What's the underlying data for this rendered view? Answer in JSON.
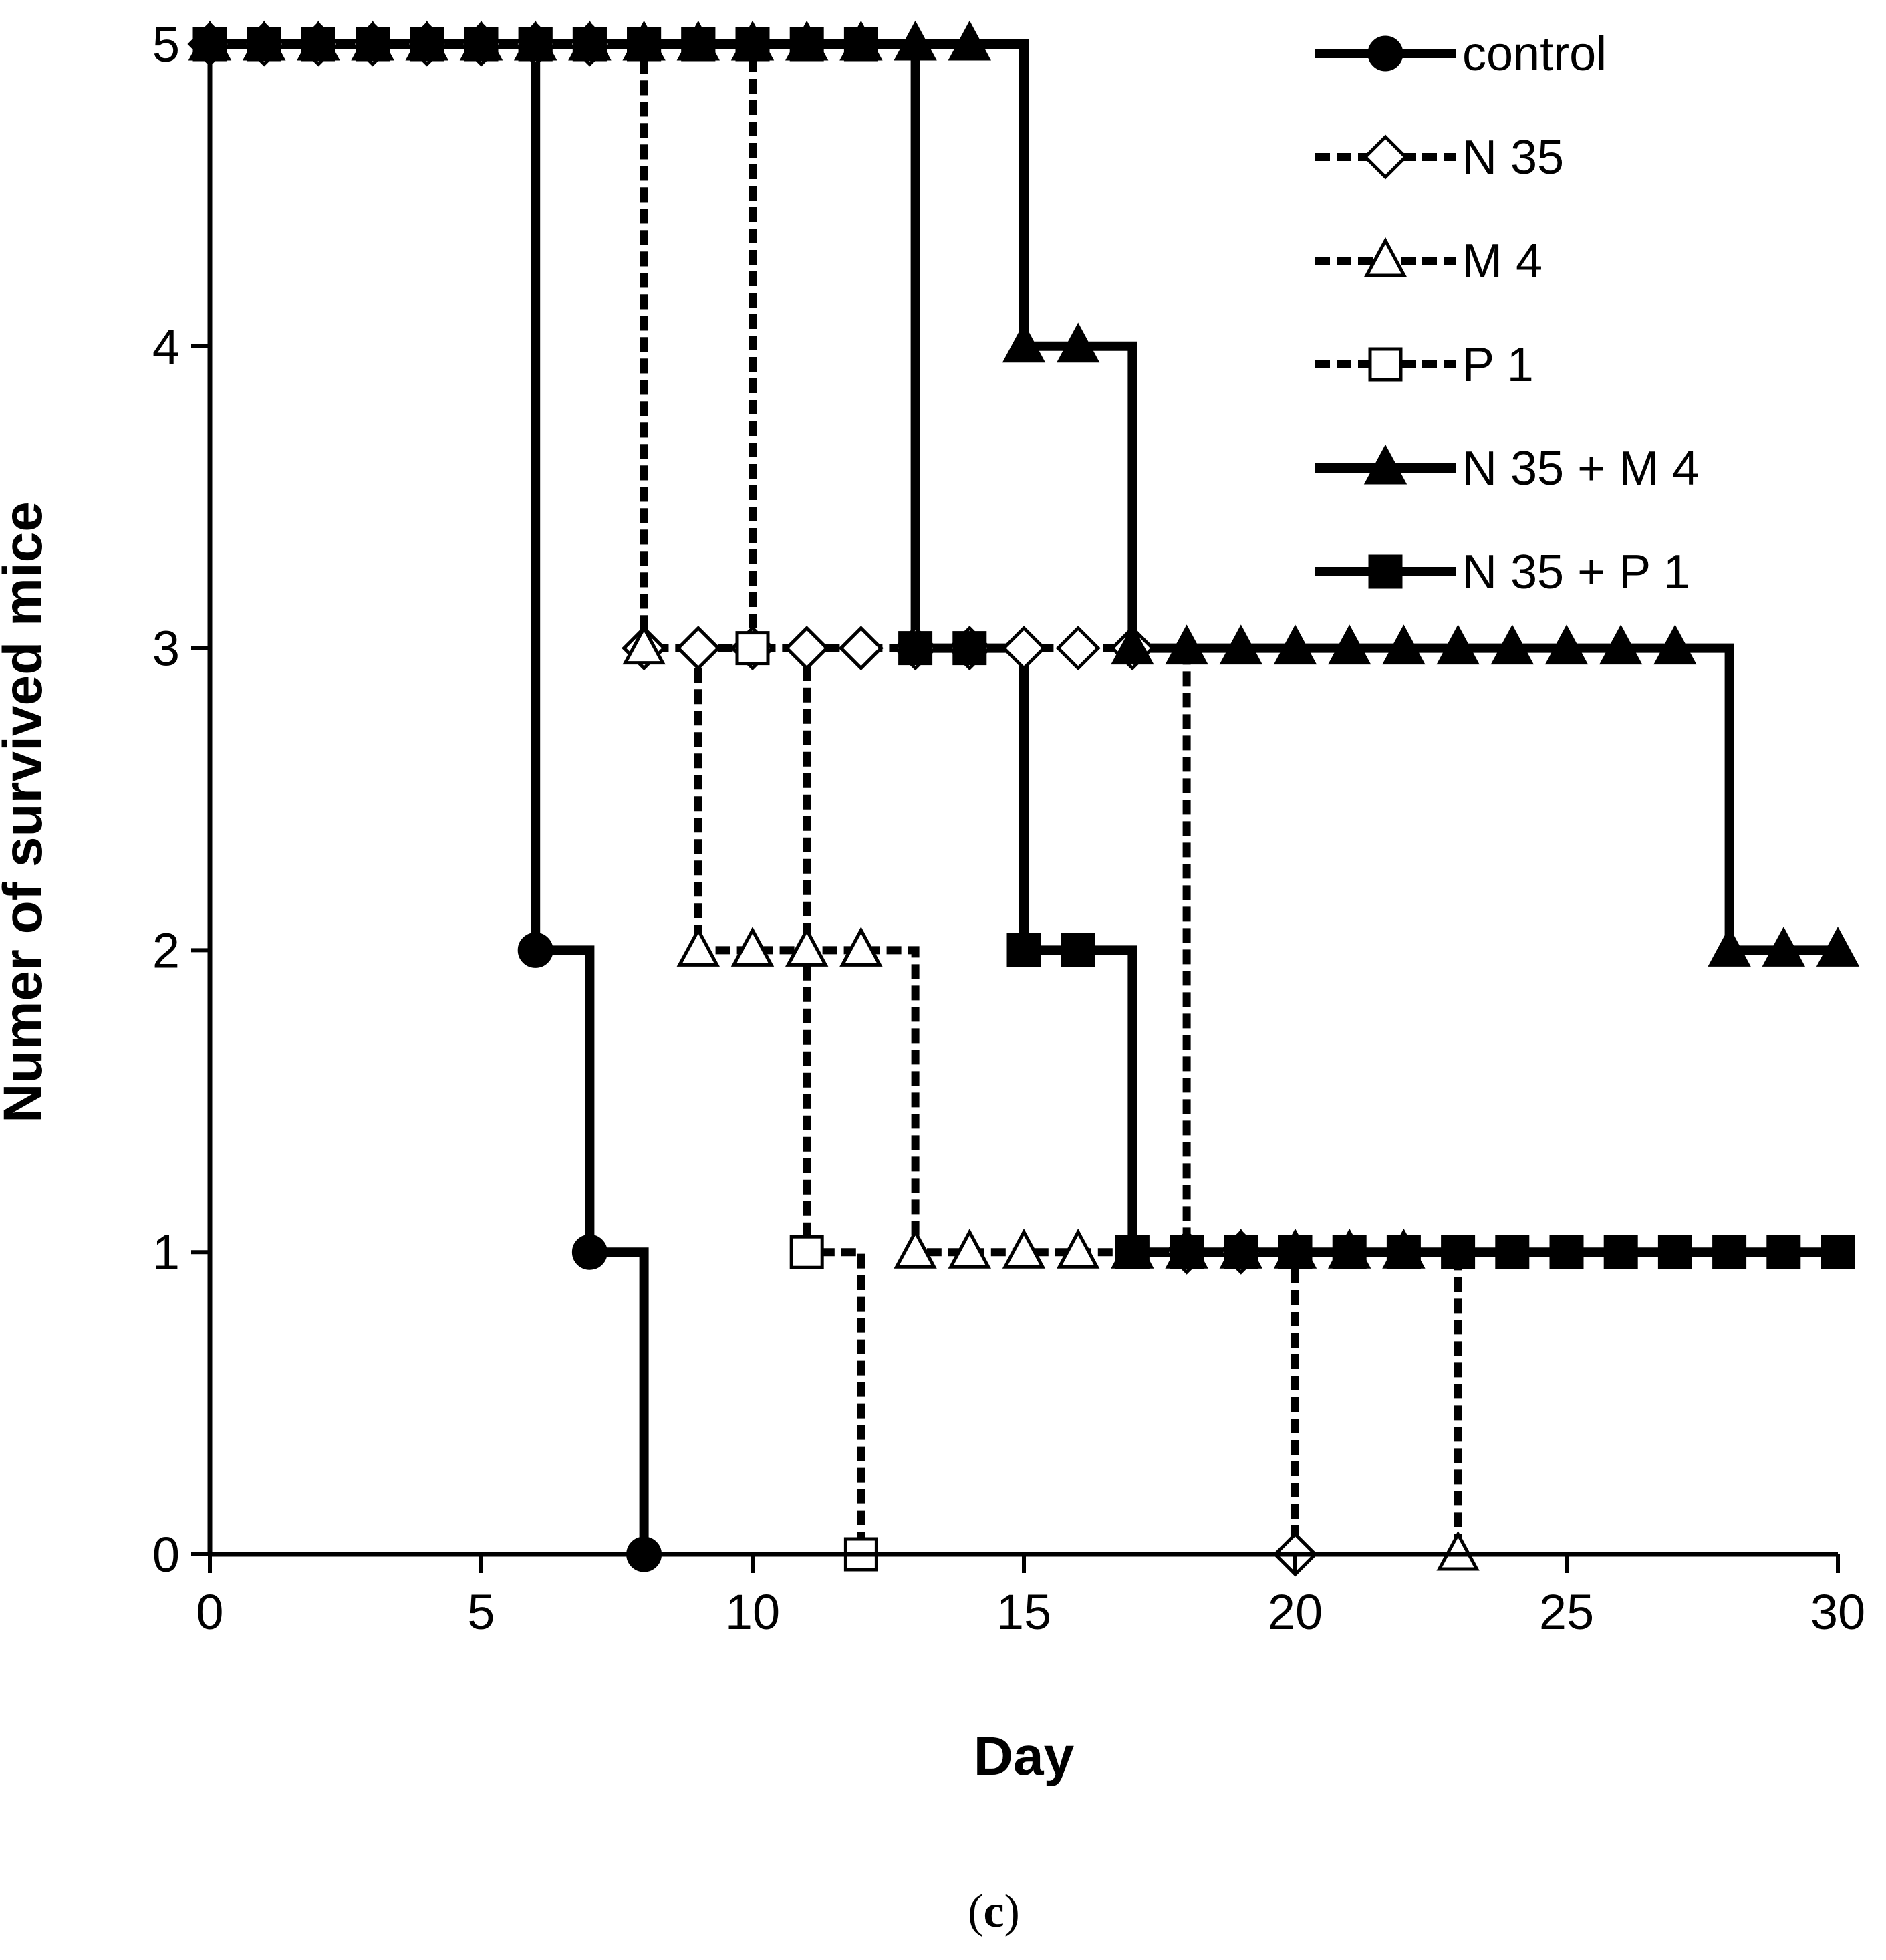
{
  "chart_data": {
    "type": "line",
    "step": true,
    "xlabel": "Day",
    "ylabel": "Numer of survived mice",
    "xlim": [
      0,
      30
    ],
    "ylim": [
      0,
      5
    ],
    "xticks": [
      0,
      5,
      10,
      15,
      20,
      25,
      30
    ],
    "yticks": [
      0,
      1,
      2,
      3,
      4,
      5
    ],
    "grid": false,
    "legend_position": "top-right",
    "panel_label_open": "(",
    "panel_label_letter": "c",
    "panel_label_close": ")",
    "series": [
      {
        "name": "control",
        "marker": "circle",
        "fill": "#000000",
        "dashed": false,
        "x": [
          0,
          1,
          2,
          3,
          4,
          5,
          6,
          7,
          8
        ],
        "y": [
          5,
          5,
          5,
          5,
          5,
          5,
          2,
          1,
          0
        ]
      },
      {
        "name": "N 35",
        "marker": "diamond",
        "fill": "#ffffff",
        "dashed": true,
        "x": [
          0,
          1,
          2,
          3,
          4,
          5,
          6,
          7,
          8,
          9,
          10,
          11,
          12,
          13,
          14,
          15,
          16,
          17,
          18,
          19,
          20
        ],
        "y": [
          5,
          5,
          5,
          5,
          5,
          5,
          5,
          5,
          3,
          3,
          3,
          3,
          3,
          3,
          3,
          3,
          3,
          3,
          1,
          1,
          0
        ]
      },
      {
        "name": "M 4",
        "marker": "triangle",
        "fill": "#ffffff",
        "dashed": true,
        "x": [
          0,
          1,
          2,
          3,
          4,
          5,
          6,
          7,
          8,
          9,
          10,
          11,
          12,
          13,
          14,
          15,
          16,
          17,
          18,
          19,
          20,
          21,
          22,
          23
        ],
        "y": [
          5,
          5,
          5,
          5,
          5,
          5,
          5,
          5,
          3,
          2,
          2,
          2,
          2,
          1,
          1,
          1,
          1,
          1,
          1,
          1,
          1,
          1,
          1,
          0
        ]
      },
      {
        "name": "P 1",
        "marker": "square",
        "fill": "#ffffff",
        "dashed": true,
        "x": [
          0,
          1,
          2,
          3,
          4,
          5,
          6,
          7,
          8,
          9,
          10,
          11,
          12
        ],
        "y": [
          5,
          5,
          5,
          5,
          5,
          5,
          5,
          5,
          5,
          5,
          3,
          1,
          0
        ]
      },
      {
        "name": "N 35 + M 4",
        "marker": "triangle",
        "fill": "#000000",
        "dashed": false,
        "x": [
          0,
          1,
          2,
          3,
          4,
          5,
          6,
          7,
          8,
          9,
          10,
          11,
          12,
          13,
          14,
          15,
          16,
          17,
          18,
          19,
          20,
          21,
          22,
          23,
          24,
          25,
          26,
          27,
          28,
          29,
          30
        ],
        "y": [
          5,
          5,
          5,
          5,
          5,
          5,
          5,
          5,
          5,
          5,
          5,
          5,
          5,
          5,
          5,
          4,
          4,
          3,
          3,
          3,
          3,
          3,
          3,
          3,
          3,
          3,
          3,
          3,
          2,
          2,
          2
        ]
      },
      {
        "name": "N 35 + P 1",
        "marker": "square",
        "fill": "#000000",
        "dashed": false,
        "x": [
          0,
          1,
          2,
          3,
          4,
          5,
          6,
          7,
          8,
          9,
          10,
          11,
          12,
          13,
          14,
          15,
          16,
          17,
          18,
          19,
          20,
          21,
          22,
          23,
          24,
          25,
          26,
          27,
          28,
          29,
          30
        ],
        "y": [
          5,
          5,
          5,
          5,
          5,
          5,
          5,
          5,
          5,
          5,
          5,
          5,
          5,
          3,
          3,
          2,
          2,
          1,
          1,
          1,
          1,
          1,
          1,
          1,
          1,
          1,
          1,
          1,
          1,
          1,
          1
        ]
      }
    ]
  }
}
